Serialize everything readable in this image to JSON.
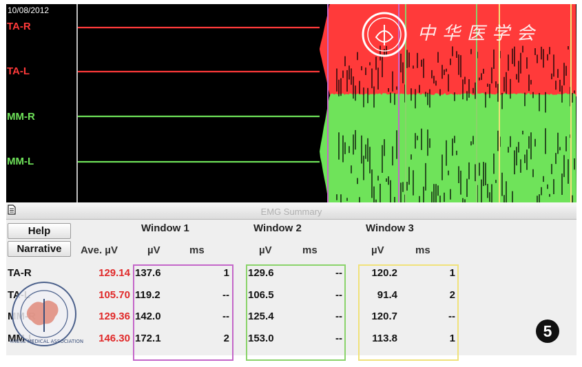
{
  "scope": {
    "date": "10/08/2012",
    "channels": [
      {
        "label": "TA-R",
        "color": "#ff3a3a"
      },
      {
        "label": "TA-L",
        "color": "#ff3a3a"
      },
      {
        "label": "MM-R",
        "color": "#6fe35a"
      },
      {
        "label": "MM-L",
        "color": "#6fe35a"
      }
    ],
    "watermark_text": "中华医学会"
  },
  "panel": {
    "title": "EMG Summary",
    "help_label": "Help",
    "narrative_label": "Narrative",
    "ave_header": "Ave. µV",
    "windows": [
      {
        "title": "Window 1",
        "uv": "µV",
        "ms": "ms",
        "color": "#c466c9"
      },
      {
        "title": "Window 2",
        "uv": "µV",
        "ms": "ms",
        "color": "#8ad36a"
      },
      {
        "title": "Window 3",
        "uv": "µV",
        "ms": "ms",
        "color": "#f0e27a"
      }
    ],
    "rows": [
      {
        "label": "TA-R",
        "ave": "129.14",
        "w1_uv": "137.6",
        "w1_ms": "1",
        "w2_uv": "129.6",
        "w2_ms": "--",
        "w3_uv": "120.2",
        "w3_ms": "1"
      },
      {
        "label": "TA-L",
        "ave": "105.70",
        "w1_uv": "119.2",
        "w1_ms": "--",
        "w2_uv": "106.5",
        "w2_ms": "--",
        "w3_uv": "91.4",
        "w3_ms": "2"
      },
      {
        "label": "MM-R",
        "ave": "129.36",
        "w1_uv": "142.0",
        "w1_ms": "--",
        "w2_uv": "125.4",
        "w2_ms": "--",
        "w3_uv": "120.7",
        "w3_ms": "--"
      },
      {
        "label": "MM-L",
        "ave": "146.30",
        "w1_uv": "172.1",
        "w1_ms": "2",
        "w2_uv": "153.0",
        "w2_ms": "--",
        "w3_uv": "113.8",
        "w3_ms": "1"
      }
    ]
  },
  "badge": "5",
  "stamp_text": "CHINESE MEDICAL ASSOCIATION"
}
